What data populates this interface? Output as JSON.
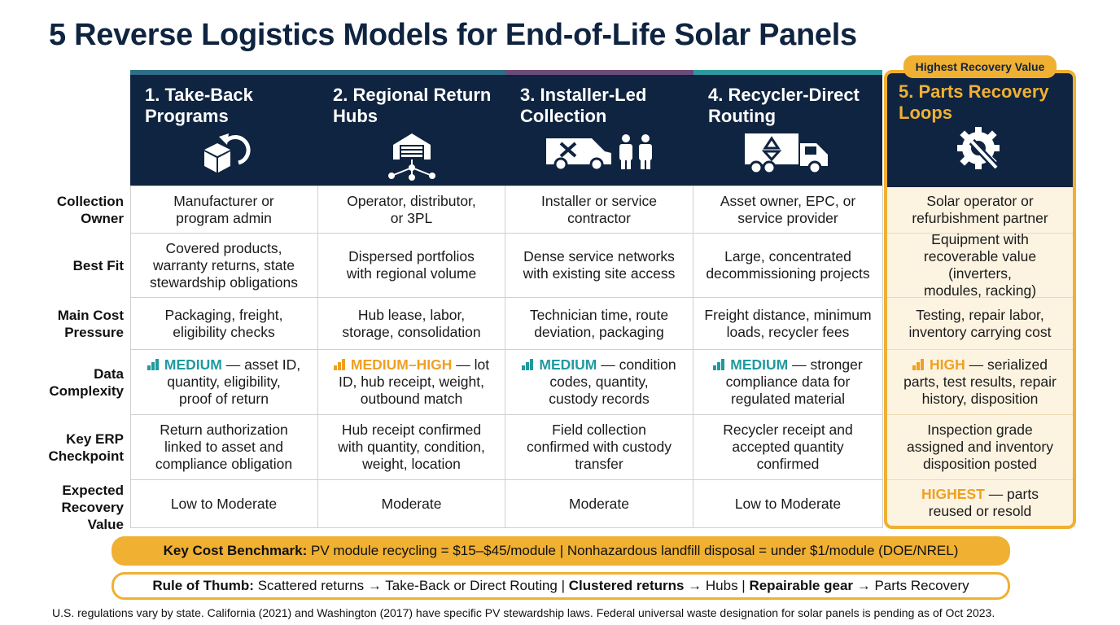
{
  "title": "5 Reverse Logistics Models for End-of-Life Solar Panels",
  "badge": "Highest Recovery Value",
  "colors": {
    "navy": "#0f2440",
    "accent_gold": "#f0b032",
    "medium_teal": "#1f9aa0",
    "high_orange": "#f0a020",
    "highlight_bg": "#fdf3e1"
  },
  "models": [
    {
      "label": "1. Take-Back\nPrograms",
      "icon": "box-return-icon",
      "top_color": "#2e6e86"
    },
    {
      "label": "2. Regional Return\nHubs",
      "icon": "warehouse-hub-icon",
      "top_color": "#2e6e86"
    },
    {
      "label": "3. Installer-Led\nCollection",
      "icon": "van-technicians-icon",
      "top_color": "#6b4b7a"
    },
    {
      "label": "4. Recycler-Direct\nRouting",
      "icon": "recycling-truck-icon",
      "top_color": "#2e9aa0"
    },
    {
      "label": "5. Parts Recovery\nLoops",
      "icon": "gear-wrench-icon",
      "top_color": "#f0b032"
    }
  ],
  "row_labels": [
    "Collection\nOwner",
    "Best Fit",
    "Main Cost\nPressure",
    "Data\nComplexity",
    "Key ERP\nCheckpoint",
    "Expected\nRecovery\nValue"
  ],
  "rows": {
    "collection_owner": [
      "Manufacturer or\nprogram admin",
      "Operator, distributor,\nor 3PL",
      "Installer or service\ncontractor",
      "Asset owner, EPC, or\nservice provider",
      "Solar operator or\nrefurbishment partner"
    ],
    "best_fit": [
      "Covered products,\nwarranty returns, state\nstewardship obligations",
      "Dispersed portfolios\nwith regional volume",
      "Dense service networks\nwith existing site access",
      "Large, concentrated\ndecommissioning projects",
      "Equipment with\nrecoverable value (inverters,\nmodules, racking)"
    ],
    "main_cost_pressure": [
      "Packaging, freight,\neligibility checks",
      "Hub lease, labor,\nstorage, consolidation",
      "Technician time, route\ndeviation, packaging",
      "Freight distance, minimum\nloads, recycler fees",
      "Testing, repair labor,\ninventory carrying cost"
    ],
    "data_complexity": [
      {
        "level": "MEDIUM",
        "rest": " — asset ID,\nquantity, eligibility,\nproof of return",
        "color": "#1f9aa0"
      },
      {
        "level": "MEDIUM–HIGH",
        "rest": " — lot\nID, hub receipt, weight,\noutbound match",
        "color": "#f0a020"
      },
      {
        "level": "MEDIUM",
        "rest": " — condition\ncodes, quantity,\ncustody records",
        "color": "#1f9aa0"
      },
      {
        "level": "MEDIUM",
        "rest": " — stronger\ncompliance data for\nregulated material",
        "color": "#1f9aa0"
      },
      {
        "level": "HIGH",
        "rest": " — serialized\nparts, test results, repair\nhistory, disposition",
        "color": "#f0a020"
      }
    ],
    "key_erp_checkpoint": [
      "Return authorization\nlinked to asset and\ncompliance obligation",
      "Hub receipt confirmed\nwith quantity, condition,\nweight, location",
      "Field collection\nconfirmed with custody\ntransfer",
      "Recycler receipt and\naccepted quantity\nconfirmed",
      "Inspection grade\nassigned and inventory\ndisposition posted"
    ],
    "expected_recovery_value": [
      "Low to Moderate",
      "Moderate",
      "Moderate",
      "Low to Moderate",
      {
        "level": "HIGHEST",
        "rest": " — parts\nreused or resold"
      }
    ]
  },
  "benchmark": {
    "bold": "Key Cost Benchmark:",
    "text": " PV module recycling = $15–$45/module | Nonhazardous landfill disposal = under $1/module (DOE/NREL)"
  },
  "rule_of_thumb": {
    "b1": "Rule of Thumb:",
    "t1": " Scattered returns → Take-Back or Direct Routing | ",
    "b2": "Clustered returns",
    "t2": " → Hubs | ",
    "b3": "Repairable gear",
    "t3": " → Parts Recovery"
  },
  "footnote": "U.S. regulations vary by state. California (2021) and Washington (2017) have specific PV stewardship laws. Federal universal waste designation for solar panels is pending as of Oct 2023."
}
